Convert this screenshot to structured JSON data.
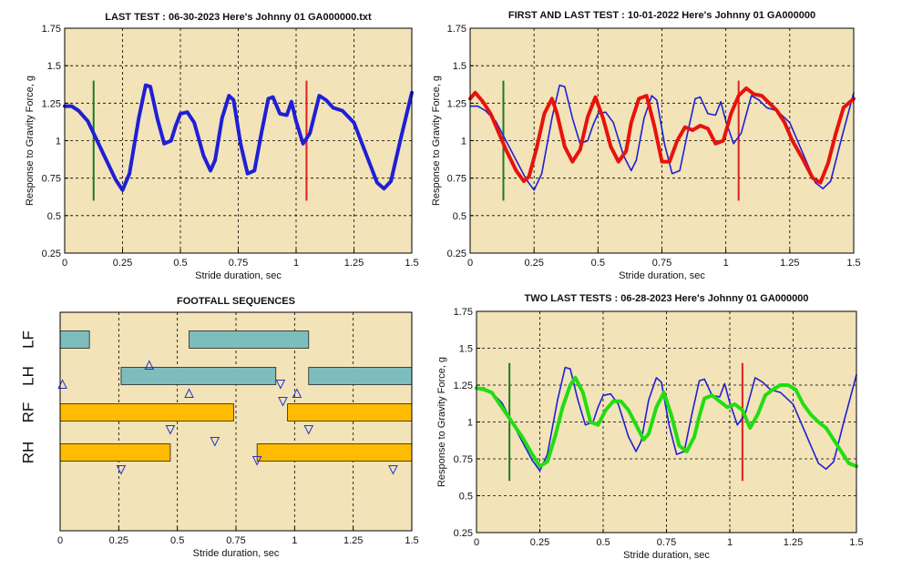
{
  "colors": {
    "plot_bg": "#F2E3B8",
    "grid": "#000000",
    "last_test": "#1F1FD6",
    "first_test": "#E8120C",
    "two_last": "#22DD11",
    "marker_left": "#1F7A1F",
    "marker_right": "#E02020",
    "fore_bar": "#7DBDBD",
    "hind_bar": "#FFBB00",
    "triangle": "#2233CC"
  },
  "chart_data": [
    {
      "id": "last-test",
      "type": "line",
      "title": "LAST TEST : 06-30-2023 Here's Johnny 01 GA000000.txt",
      "xlabel": "Stride duration, sec",
      "ylabel": "Response to Gravity Force, g",
      "xlim": [
        0,
        1.5
      ],
      "ylim": [
        0.25,
        1.75
      ],
      "xticks": [
        "0",
        "0.25",
        "0.5",
        "0.75",
        "1",
        "1.25",
        "1.5"
      ],
      "yticks": [
        "0.25",
        "0.5",
        "0.75",
        "1",
        "1.25",
        "1.5",
        "1.75"
      ],
      "grid": true,
      "markers": [
        {
          "x": 0.125,
          "y_from": 0.6,
          "y_to": 1.4,
          "color": "green"
        },
        {
          "x": 1.045,
          "y_from": 0.6,
          "y_to": 1.4,
          "color": "red"
        }
      ],
      "series": [
        {
          "color_key": "last_test",
          "width": "thick",
          "x": [
            0,
            0.03,
            0.06,
            0.1,
            0.14,
            0.18,
            0.22,
            0.25,
            0.28,
            0.32,
            0.35,
            0.37,
            0.4,
            0.43,
            0.46,
            0.48,
            0.5,
            0.53,
            0.56,
            0.6,
            0.63,
            0.65,
            0.68,
            0.71,
            0.73,
            0.76,
            0.79,
            0.82,
            0.85,
            0.88,
            0.9,
            0.93,
            0.96,
            0.98,
            1.0,
            1.03,
            1.06,
            1.1,
            1.13,
            1.16,
            1.2,
            1.25,
            1.3,
            1.35,
            1.38,
            1.41,
            1.45,
            1.5
          ],
          "y": [
            1.23,
            1.23,
            1.2,
            1.13,
            1.0,
            0.87,
            0.74,
            0.67,
            0.78,
            1.15,
            1.37,
            1.36,
            1.15,
            0.98,
            1.0,
            1.1,
            1.18,
            1.19,
            1.12,
            0.9,
            0.8,
            0.87,
            1.15,
            1.3,
            1.27,
            0.98,
            0.78,
            0.8,
            1.05,
            1.28,
            1.29,
            1.18,
            1.17,
            1.26,
            1.13,
            0.98,
            1.05,
            1.3,
            1.27,
            1.22,
            1.2,
            1.12,
            0.92,
            0.72,
            0.68,
            0.73,
            1.0,
            1.32
          ]
        }
      ]
    },
    {
      "id": "first-last",
      "type": "line",
      "title": "FIRST AND LAST TEST : 10-01-2022 Here's Johnny 01 GA000000",
      "xlabel": "Stride duration, sec",
      "ylabel": "Response to Gravity Force, g",
      "xlim": [
        0,
        1.5
      ],
      "ylim": [
        0.25,
        1.75
      ],
      "xticks": [
        "0",
        "0.25",
        "0.5",
        "0.75",
        "1",
        "1.25",
        "1.5"
      ],
      "yticks": [
        "0.25",
        "0.5",
        "0.75",
        "1",
        "1.25",
        "1.5",
        "1.75"
      ],
      "grid": true,
      "markers": [
        {
          "x": 0.13,
          "y_from": 0.6,
          "y_to": 1.4,
          "color": "green"
        },
        {
          "x": 1.05,
          "y_from": 0.6,
          "y_to": 1.4,
          "color": "red"
        }
      ],
      "series": [
        {
          "color_key": "last_test",
          "width": "thin",
          "x": [
            0,
            0.03,
            0.06,
            0.1,
            0.14,
            0.18,
            0.22,
            0.25,
            0.28,
            0.32,
            0.35,
            0.37,
            0.4,
            0.43,
            0.46,
            0.48,
            0.5,
            0.53,
            0.56,
            0.6,
            0.63,
            0.65,
            0.68,
            0.71,
            0.73,
            0.76,
            0.79,
            0.82,
            0.85,
            0.88,
            0.9,
            0.93,
            0.96,
            0.98,
            1.0,
            1.03,
            1.06,
            1.1,
            1.13,
            1.16,
            1.2,
            1.25,
            1.3,
            1.35,
            1.38,
            1.41,
            1.45,
            1.5
          ],
          "y": [
            1.23,
            1.23,
            1.2,
            1.13,
            1.0,
            0.87,
            0.74,
            0.67,
            0.78,
            1.15,
            1.37,
            1.36,
            1.15,
            0.98,
            1.0,
            1.1,
            1.18,
            1.19,
            1.12,
            0.9,
            0.8,
            0.87,
            1.15,
            1.3,
            1.27,
            0.98,
            0.78,
            0.8,
            1.05,
            1.28,
            1.29,
            1.18,
            1.17,
            1.26,
            1.13,
            0.98,
            1.05,
            1.3,
            1.27,
            1.22,
            1.2,
            1.12,
            0.92,
            0.72,
            0.68,
            0.73,
            1.0,
            1.32
          ]
        },
        {
          "color_key": "first_test",
          "width": "thick",
          "x": [
            0,
            0.02,
            0.05,
            0.08,
            0.11,
            0.14,
            0.18,
            0.21,
            0.23,
            0.26,
            0.29,
            0.32,
            0.34,
            0.37,
            0.4,
            0.43,
            0.46,
            0.49,
            0.52,
            0.55,
            0.58,
            0.61,
            0.63,
            0.66,
            0.69,
            0.72,
            0.75,
            0.78,
            0.81,
            0.84,
            0.87,
            0.9,
            0.93,
            0.96,
            0.99,
            1.02,
            1.05,
            1.08,
            1.11,
            1.14,
            1.17,
            1.2,
            1.23,
            1.26,
            1.3,
            1.34,
            1.37,
            1.4,
            1.43,
            1.46,
            1.5
          ],
          "y": [
            1.28,
            1.32,
            1.26,
            1.18,
            1.06,
            0.94,
            0.8,
            0.73,
            0.76,
            0.95,
            1.18,
            1.28,
            1.18,
            0.96,
            0.86,
            0.94,
            1.16,
            1.29,
            1.15,
            0.96,
            0.86,
            0.93,
            1.12,
            1.28,
            1.3,
            1.1,
            0.86,
            0.86,
            1.0,
            1.09,
            1.07,
            1.1,
            1.08,
            0.98,
            1.0,
            1.18,
            1.3,
            1.35,
            1.31,
            1.3,
            1.25,
            1.2,
            1.12,
            1.0,
            0.88,
            0.75,
            0.72,
            0.85,
            1.05,
            1.22,
            1.28
          ]
        }
      ]
    },
    {
      "id": "footfall",
      "type": "timeline",
      "title": "FOOTFALL SEQUENCES",
      "xlabel": "Stride duration, sec",
      "xlim": [
        0,
        1.5
      ],
      "xticks": [
        "0",
        "0.25",
        "0.5",
        "0.75",
        "1",
        "1.25",
        "1.5"
      ],
      "grid": true,
      "rows": [
        {
          "label": "LF",
          "color_key": "fore_bar",
          "segments": [
            [
              0,
              0.125
            ],
            [
              0.55,
              1.06
            ]
          ]
        },
        {
          "label": "LH",
          "color_key": "fore_bar",
          "segments": [
            [
              0.26,
              0.92
            ],
            [
              1.06,
              1.5
            ]
          ]
        },
        {
          "label": "RF",
          "color_key": "hind_bar",
          "segments": [
            [
              0,
              0.74
            ],
            [
              0.97,
              1.5
            ]
          ]
        },
        {
          "label": "RH",
          "color_key": "hind_bar",
          "segments": [
            [
              0,
              0.47
            ],
            [
              0.84,
              1.5
            ]
          ]
        }
      ],
      "triangles": [
        {
          "x": 0.01,
          "row": "LH",
          "dir": "up",
          "pos": "mid"
        },
        {
          "x": 0.38,
          "row": "LH",
          "dir": "up",
          "pos": "top"
        },
        {
          "x": 0.55,
          "row": "LH",
          "dir": "up",
          "pos": "bottom"
        },
        {
          "x": 0.94,
          "row": "LH",
          "dir": "down",
          "pos": "mid"
        },
        {
          "x": 1.01,
          "row": "LH",
          "dir": "up",
          "pos": "bottom"
        },
        {
          "x": 0.47,
          "row": "RF",
          "dir": "down",
          "pos": "bottom"
        },
        {
          "x": 0.95,
          "row": "RF",
          "dir": "down",
          "pos": "top"
        },
        {
          "x": 1.06,
          "row": "RF",
          "dir": "down",
          "pos": "bottom"
        },
        {
          "x": 0.26,
          "row": "RH",
          "dir": "down",
          "pos": "bottom"
        },
        {
          "x": 0.66,
          "row": "RH",
          "dir": "down",
          "pos": "top"
        },
        {
          "x": 0.84,
          "row": "RH",
          "dir": "down",
          "pos": "mid"
        },
        {
          "x": 1.42,
          "row": "RH",
          "dir": "down",
          "pos": "bottom"
        }
      ]
    },
    {
      "id": "two-last",
      "type": "line",
      "title": "TWO LAST TESTS : 06-28-2023 Here's Johnny 01 GA000000",
      "xlabel": "Stride duration, sec",
      "ylabel": "Response to Gravity Force, g",
      "xlim": [
        0,
        1.5
      ],
      "ylim": [
        0.25,
        1.75
      ],
      "xticks": [
        "0",
        "0.25",
        "0.5",
        "0.75",
        "1",
        "1.25",
        "1.5"
      ],
      "yticks": [
        "0.25",
        "0.5",
        "0.75",
        "1",
        "1.25",
        "1.5",
        "1.75"
      ],
      "grid": true,
      "markers": [
        {
          "x": 0.13,
          "y_from": 0.6,
          "y_to": 1.4,
          "color": "green"
        },
        {
          "x": 1.05,
          "y_from": 0.6,
          "y_to": 1.4,
          "color": "red"
        }
      ],
      "series": [
        {
          "color_key": "last_test",
          "width": "thin",
          "x": [
            0,
            0.03,
            0.06,
            0.1,
            0.14,
            0.18,
            0.22,
            0.25,
            0.28,
            0.32,
            0.35,
            0.37,
            0.4,
            0.43,
            0.46,
            0.48,
            0.5,
            0.53,
            0.56,
            0.6,
            0.63,
            0.65,
            0.68,
            0.71,
            0.73,
            0.76,
            0.79,
            0.82,
            0.85,
            0.88,
            0.9,
            0.93,
            0.96,
            0.98,
            1.0,
            1.03,
            1.06,
            1.1,
            1.13,
            1.16,
            1.2,
            1.25,
            1.3,
            1.35,
            1.38,
            1.41,
            1.45,
            1.5
          ],
          "y": [
            1.23,
            1.23,
            1.2,
            1.13,
            1.0,
            0.87,
            0.74,
            0.67,
            0.78,
            1.15,
            1.37,
            1.36,
            1.15,
            0.98,
            1.0,
            1.1,
            1.18,
            1.19,
            1.12,
            0.9,
            0.8,
            0.87,
            1.15,
            1.3,
            1.27,
            0.98,
            0.78,
            0.8,
            1.05,
            1.28,
            1.29,
            1.18,
            1.17,
            1.26,
            1.13,
            0.98,
            1.05,
            1.3,
            1.27,
            1.22,
            1.2,
            1.12,
            0.92,
            0.72,
            0.68,
            0.73,
            1.0,
            1.32
          ]
        },
        {
          "color_key": "two_last",
          "width": "thick",
          "x": [
            0,
            0.03,
            0.06,
            0.1,
            0.14,
            0.18,
            0.22,
            0.25,
            0.28,
            0.31,
            0.34,
            0.37,
            0.39,
            0.42,
            0.45,
            0.48,
            0.51,
            0.54,
            0.57,
            0.6,
            0.63,
            0.66,
            0.68,
            0.71,
            0.74,
            0.77,
            0.8,
            0.83,
            0.86,
            0.88,
            0.9,
            0.93,
            0.96,
            0.99,
            1.02,
            1.05,
            1.08,
            1.11,
            1.14,
            1.17,
            1.2,
            1.23,
            1.26,
            1.29,
            1.32,
            1.35,
            1.38,
            1.41,
            1.44,
            1.47,
            1.5
          ],
          "y": [
            1.23,
            1.22,
            1.2,
            1.1,
            1.0,
            0.9,
            0.78,
            0.7,
            0.73,
            0.9,
            1.1,
            1.25,
            1.3,
            1.2,
            1.0,
            0.98,
            1.08,
            1.14,
            1.14,
            1.08,
            0.98,
            0.88,
            0.92,
            1.1,
            1.2,
            1.04,
            0.84,
            0.8,
            0.9,
            1.04,
            1.16,
            1.18,
            1.14,
            1.1,
            1.12,
            1.08,
            0.96,
            1.05,
            1.18,
            1.22,
            1.25,
            1.25,
            1.22,
            1.12,
            1.05,
            1.0,
            0.96,
            0.88,
            0.8,
            0.72,
            0.7
          ]
        }
      ]
    }
  ]
}
